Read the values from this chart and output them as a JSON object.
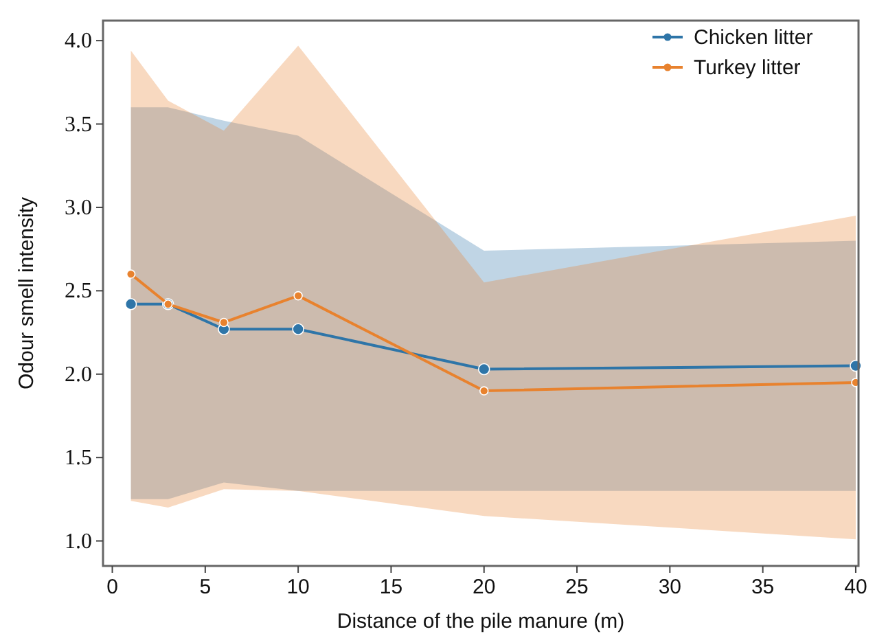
{
  "chart_data": {
    "type": "line",
    "xlabel": "Distance of the pile manure (m)",
    "ylabel": "Odour smell intensity",
    "x": [
      1,
      3,
      6,
      10,
      20,
      40
    ],
    "series": [
      {
        "name": "Chicken litter",
        "color": "#2e75a8",
        "values": [
          2.42,
          2.42,
          2.27,
          2.27,
          2.03,
          2.05
        ],
        "lower": [
          1.25,
          1.25,
          1.35,
          1.3,
          1.3,
          1.3
        ],
        "upper": [
          3.6,
          3.6,
          3.52,
          3.43,
          2.74,
          2.8
        ]
      },
      {
        "name": "Turkey litter",
        "color": "#e8822e",
        "values": [
          2.6,
          2.42,
          2.31,
          2.47,
          1.9,
          1.95
        ],
        "lower": [
          1.24,
          1.2,
          1.31,
          1.3,
          1.15,
          1.01
        ],
        "upper": [
          3.94,
          3.64,
          3.46,
          3.97,
          2.55,
          2.95
        ]
      }
    ],
    "xlim": [
      -0.5,
      40.15
    ],
    "xticks": [
      0,
      5,
      10,
      15,
      20,
      25,
      30,
      35,
      40
    ],
    "ylim": [
      0.85,
      4.12
    ],
    "yticks": [
      {
        "value": 1,
        "label": "1.0"
      },
      {
        "value": 1.5,
        "label": "1.5"
      },
      {
        "value": 2,
        "label": "2.0"
      },
      {
        "value": 2.5,
        "label": "2.5"
      },
      {
        "value": 3,
        "label": "3.0"
      },
      {
        "value": 3.5,
        "label": "3.5"
      },
      {
        "value": 4,
        "label": "4.0"
      }
    ],
    "grid": false,
    "legend": "top right",
    "marker": "circle",
    "line_style": "solid"
  }
}
